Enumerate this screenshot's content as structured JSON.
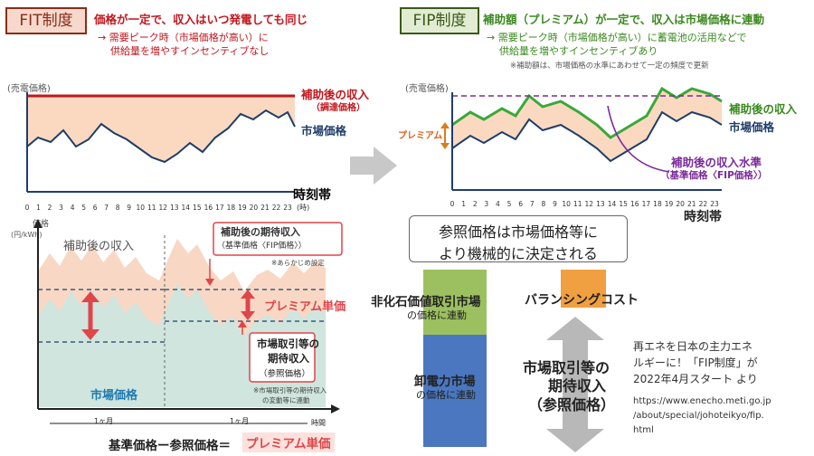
{
  "fit": {
    "tag": "FIT制度",
    "headline": "価格が一定で、収入はいつ発電しても同じ",
    "note1": "→ 需要ピーク時（市場価格が高い）に",
    "note2": "供給量を増やすインセンティブなし",
    "y_label": "(売電価格)",
    "revenue_label1": "補助後の収入",
    "revenue_label2": "（調達価格）",
    "market_label": "市場価格",
    "time_label": "時刻帯",
    "hours": [
      "0",
      "1",
      "2",
      "3",
      "4",
      "5",
      "6",
      "7",
      "8",
      "9",
      "10",
      "11",
      "12",
      "13",
      "14",
      "15",
      "16",
      "17",
      "18",
      "19",
      "20",
      "21",
      "22",
      "23"
    ],
    "hour_unit": "(時)"
  },
  "fip": {
    "tag": "FIP制度",
    "headline": "補助額（プレミアム）が一定で、収入は市場価格に連動",
    "note1": "→ 需要ピーク時（市場価格が高い）に蓄電池の活用などで",
    "note2": "供給量を増やすインセンティブあり",
    "note3": "※補助額は、市場価格の水準にあわせて一定の頻度で更新",
    "y_label": "(売電価格)",
    "premium_label": "プレミアム",
    "revenue_label": "補助後の収入",
    "market_label": "市場価格",
    "ref_label1": "補助後の収入水準",
    "ref_label2": "（基準価格〈FIP価格〉）",
    "time_label": "時刻帯",
    "hours": [
      "0",
      "1",
      "2",
      "3",
      "4",
      "5",
      "6",
      "7",
      "8",
      "9",
      "10",
      "11",
      "12",
      "13",
      "14",
      "15",
      "16",
      "17",
      "18",
      "19",
      "20",
      "21",
      "22",
      "23"
    ],
    "hour_unit": "(時)"
  },
  "detail": {
    "y_label1": "価格",
    "y_label2": "(円/kWh)",
    "revenue_label": "補助後の収入",
    "expected_label1": "補助後の期待収入",
    "expected_label2": "（基準価格〈FIP価格〉）",
    "preset_note": "※あらかじめ設定",
    "premium_unit": "プレミアム単価",
    "market_expect1": "市場取引等の",
    "market_expect2": "期待収入",
    "market_expect3": "（参照価格）",
    "market_note1": "※市場取引等の期待収入",
    "market_note2": "の変動等に連動",
    "market_label": "市場価格",
    "month1": "1ヶ月",
    "month2": "1ヶ月",
    "time_axis": "時間",
    "formula_left": "基準価格ー参照価格＝",
    "formula_right": "プレミアム単価"
  },
  "reference_box": {
    "line1": "参照価格は市場価格等に",
    "line2": "より機械的に決定される"
  },
  "components": {
    "non_fossil_title": "非化石価値取引市場",
    "non_fossil_sub": "の価格に連動",
    "wholesale_title": "卸電力市場",
    "wholesale_sub": "の価格に連動",
    "balancing": "バランシングコスト",
    "expected1": "市場取引等の",
    "expected2": "期待収入",
    "expected3": "（参照価格）"
  },
  "source": {
    "text1": "再エネを日本の主力エネ",
    "text2": "ルギーに！「FIP制度」が",
    "text3": "2022年4月スタート より",
    "url1": "https://www.enecho.meti.go.jp",
    "url2": "/about/special/johoteikyo/fip.",
    "url3": "html"
  }
}
